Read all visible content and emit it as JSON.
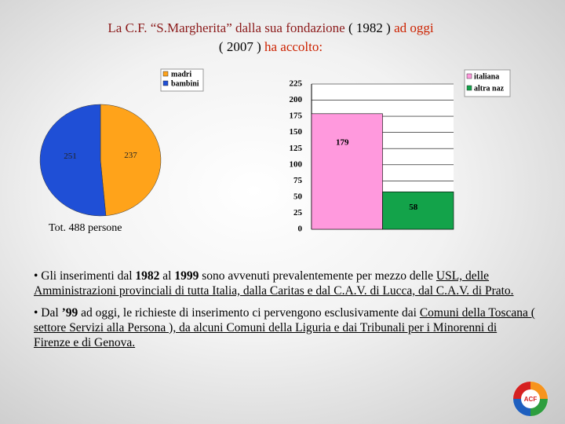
{
  "title": [
    {
      "text": "La C.F. “S.Margherita” dalla sua fondazione",
      "color": "#8b1a1a"
    },
    {
      "text": "( 1982 )",
      "color": "#000000"
    },
    {
      "text": "ad oggi",
      "color": "#cc2200"
    },
    {
      "text": "( 2007 )",
      "color": "#000000"
    },
    {
      "text": "ha accolto:",
      "color": "#cc2200"
    }
  ],
  "chart_data": [
    {
      "type": "pie",
      "categories": [
        "madri",
        "bambini"
      ],
      "values": [
        237,
        251
      ],
      "colors": [
        "#ffa31a",
        "#1f4fd6"
      ],
      "note": "Tot. 488 persone"
    },
    {
      "type": "bar",
      "categories": [
        null
      ],
      "series": [
        {
          "name": "italiana",
          "color": "#ff99dd",
          "values": [
            179
          ]
        },
        {
          "name": "altra naz",
          "color": "#13a34a",
          "values": [
            58
          ]
        }
      ],
      "ylim": [
        0,
        225
      ],
      "yticks": [
        0,
        25,
        50,
        75,
        100,
        125,
        150,
        175,
        200,
        225
      ],
      "grid": true
    }
  ],
  "bullets": [
    [
      {
        "text": "• Gli inserimenti dal "
      },
      {
        "text": "1982",
        "style": "bold"
      },
      {
        "text": " al "
      },
      {
        "text": "1999",
        "style": "bold"
      },
      {
        "text": " sono avvenuti prevalentemente per mezzo delle "
      },
      {
        "text": "USL, delle Amministrazioni provinciali di tutta Italia, dalla Caritas e dal C.A.V. di Lucca, dal C.A.V. di Prato.",
        "style": "underline"
      }
    ],
    [
      {
        "text": "• Dal "
      },
      {
        "text": "’99",
        "style": "bold"
      },
      {
        "text": " ad oggi, le richieste di inserimento ci pervengono esclusivamente dai "
      },
      {
        "text": "Comuni della Toscana ( settore Servizi alla Persona ), da alcuni Comuni della Liguria e dai Tribunali per i Minorenni di Firenze e di Genova.",
        "style": "underline"
      }
    ]
  ],
  "logo": "ACF"
}
